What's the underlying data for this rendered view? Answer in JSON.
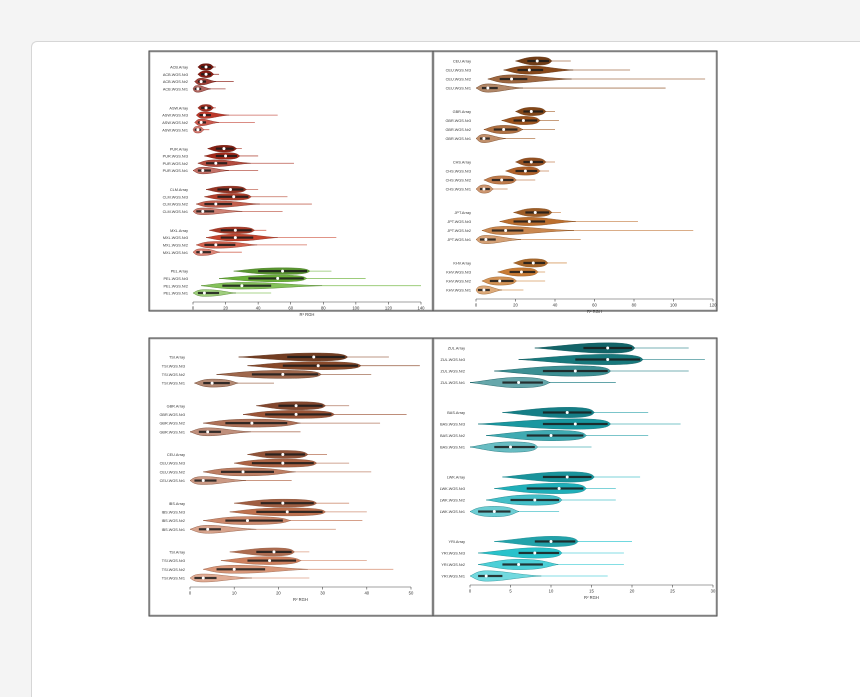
{
  "chart_data": [
    {
      "type": "violin",
      "xlabel": "R² RGH",
      "xlim": [
        0,
        140
      ],
      "xticks": [
        0,
        20,
        40,
        60,
        80,
        100,
        120,
        140
      ],
      "groups": [
        {
          "color": "#8b1c12",
          "rows": [
            {
              "label": "ACB.Array",
              "median": 8,
              "q1": 5,
              "q3": 11,
              "lo": 3,
              "hi": 14
            },
            {
              "label": "ACB.WGS.Nr3",
              "median": 8,
              "q1": 5,
              "q3": 11,
              "lo": 3,
              "hi": 16
            },
            {
              "label": "ACB.WGS.Nr2",
              "median": 5,
              "q1": 3,
              "q3": 8,
              "lo": 1,
              "hi": 25
            },
            {
              "label": "ACB.WGS.Nr1",
              "median": 3,
              "q1": 1,
              "q3": 5,
              "lo": 0,
              "hi": 20
            }
          ]
        },
        {
          "color": "#c0392b",
          "rows": [
            {
              "label": "ASW.Array",
              "median": 8,
              "q1": 5,
              "q3": 11,
              "lo": 3,
              "hi": 14
            },
            {
              "label": "ASW.WGS.Nr3",
              "median": 7,
              "q1": 4,
              "q3": 11,
              "lo": 2,
              "hi": 52
            },
            {
              "label": "ASW.WGS.Nr2",
              "median": 5,
              "q1": 3,
              "q3": 8,
              "lo": 1,
              "hi": 38
            },
            {
              "label": "ASW.WGS.Nr1",
              "median": 3,
              "q1": 1,
              "q3": 5,
              "lo": 0,
              "hi": 10
            }
          ]
        },
        {
          "color": "#a52a1a",
          "rows": [
            {
              "label": "PUR.Array",
              "median": 19,
              "q1": 14,
              "q3": 25,
              "lo": 9,
              "hi": 30
            },
            {
              "label": "PUR.WGS.Nr3",
              "median": 20,
              "q1": 14,
              "q3": 27,
              "lo": 7,
              "hi": 40
            },
            {
              "label": "PUR.WGS.Nr2",
              "median": 14,
              "q1": 8,
              "q3": 21,
              "lo": 3,
              "hi": 62
            },
            {
              "label": "PUR.WGS.Nr1",
              "median": 6,
              "q1": 3,
              "q3": 11,
              "lo": 0,
              "hi": 40
            }
          ]
        },
        {
          "color": "#b5402c",
          "rows": [
            {
              "label": "CLM.Array",
              "median": 23,
              "q1": 15,
              "q3": 31,
              "lo": 8,
              "hi": 40
            },
            {
              "label": "CLM.WGS.Nr3",
              "median": 25,
              "q1": 15,
              "q3": 34,
              "lo": 7,
              "hi": 58
            },
            {
              "label": "CLM.WGS.Nr2",
              "median": 14,
              "q1": 7,
              "q3": 24,
              "lo": 2,
              "hi": 73
            },
            {
              "label": "CLM.WGS.Nr1",
              "median": 6,
              "q1": 2,
              "q3": 13,
              "lo": 0,
              "hi": 55
            }
          ]
        },
        {
          "color": "#c9452f",
          "rows": [
            {
              "label": "MXL.Array",
              "median": 26,
              "q1": 17,
              "q3": 36,
              "lo": 10,
              "hi": 45
            },
            {
              "label": "MXL.WGS.Nr3",
              "median": 26,
              "q1": 17,
              "q3": 37,
              "lo": 8,
              "hi": 88
            },
            {
              "label": "MXL.WGS.Nr2",
              "median": 14,
              "q1": 7,
              "q3": 26,
              "lo": 2,
              "hi": 70
            },
            {
              "label": "MXL.WGS.Nr1",
              "median": 5,
              "q1": 2,
              "q3": 11,
              "lo": 0,
              "hi": 30
            }
          ]
        },
        {
          "color": "#6db53a",
          "rows": [
            {
              "label": "PEL.Array",
              "median": 55,
              "q1": 40,
              "q3": 70,
              "lo": 25,
              "hi": 85
            },
            {
              "label": "PEL.WGS.Nr3",
              "median": 52,
              "q1": 34,
              "q3": 68,
              "lo": 16,
              "hi": 106
            },
            {
              "label": "PEL.WGS.Nr2",
              "median": 30,
              "q1": 18,
              "q3": 48,
              "lo": 5,
              "hi": 140
            },
            {
              "label": "PEL.WGS.Nr1",
              "median": 7,
              "q1": 3,
              "q3": 16,
              "lo": 0,
              "hi": 48
            }
          ]
        }
      ]
    },
    {
      "type": "violin",
      "xlabel": "R² RGH",
      "xlim": [
        0,
        120
      ],
      "xticks": [
        0,
        20,
        40,
        60,
        80,
        100,
        120
      ],
      "groups": [
        {
          "color": "#8b4a1c",
          "rows": [
            {
              "label": "CEU.Array",
              "median": 31,
              "q1": 26,
              "q3": 37,
              "lo": 20,
              "hi": 48
            },
            {
              "label": "CEU.WGS.Nr3",
              "median": 27,
              "q1": 21,
              "q3": 34,
              "lo": 14,
              "hi": 78
            },
            {
              "label": "CEU.WGS.Nr2",
              "median": 18,
              "q1": 12,
              "q3": 26,
              "lo": 6,
              "hi": 116
            },
            {
              "label": "CEU.WGS.Nr1",
              "median": 6,
              "q1": 3,
              "q3": 11,
              "lo": 0,
              "hi": 96
            }
          ]
        },
        {
          "color": "#a0561f",
          "rows": [
            {
              "label": "GBR.Array",
              "median": 28,
              "q1": 24,
              "q3": 34,
              "lo": 20,
              "hi": 40
            },
            {
              "label": "GBR.WGS.Nr3",
              "median": 24,
              "q1": 19,
              "q3": 31,
              "lo": 13,
              "hi": 42
            },
            {
              "label": "GBR.WGS.Nr2",
              "median": 14,
              "q1": 9,
              "q3": 21,
              "lo": 4,
              "hi": 40
            },
            {
              "label": "GBR.WGS.Nr1",
              "median": 4,
              "q1": 2,
              "q3": 7,
              "lo": 0,
              "hi": 30
            }
          ]
        },
        {
          "color": "#b4632a",
          "rows": [
            {
              "label": "CHS.Array",
              "median": 28,
              "q1": 24,
              "q3": 34,
              "lo": 20,
              "hi": 40
            },
            {
              "label": "CHS.WGS.Nr3",
              "median": 25,
              "q1": 20,
              "q3": 31,
              "lo": 15,
              "hi": 37
            },
            {
              "label": "CHS.WGS.Nr2",
              "median": 13,
              "q1": 8,
              "q3": 19,
              "lo": 4,
              "hi": 30
            },
            {
              "label": "CHS.WGS.Nr1",
              "median": 4,
              "q1": 2,
              "q3": 7,
              "lo": 0,
              "hi": 16
            }
          ]
        },
        {
          "color": "#c0712f",
          "rows": [
            {
              "label": "JPT.Array",
              "median": 30,
              "q1": 25,
              "q3": 37,
              "lo": 19,
              "hi": 43
            },
            {
              "label": "JPT.WGS.Nr3",
              "median": 27,
              "q1": 19,
              "q3": 35,
              "lo": 12,
              "hi": 82
            },
            {
              "label": "JPT.WGS.Nr2",
              "median": 15,
              "q1": 8,
              "q3": 24,
              "lo": 3,
              "hi": 110
            },
            {
              "label": "JPT.WGS.Nr1",
              "median": 5,
              "q1": 2,
              "q3": 10,
              "lo": 0,
              "hi": 53
            }
          ]
        },
        {
          "color": "#cc7e35",
          "rows": [
            {
              "label": "KHV.Array",
              "median": 29,
              "q1": 24,
              "q3": 35,
              "lo": 19,
              "hi": 46
            },
            {
              "label": "KHV.WGS.Nr3",
              "median": 23,
              "q1": 17,
              "q3": 30,
              "lo": 11,
              "hi": 35
            },
            {
              "label": "KHV.WGS.Nr2",
              "median": 12,
              "q1": 7,
              "q3": 19,
              "lo": 3,
              "hi": 35
            },
            {
              "label": "KHV.WGS.Nr1",
              "median": 4,
              "q1": 1,
              "q3": 7,
              "lo": 0,
              "hi": 24
            }
          ]
        }
      ]
    },
    {
      "type": "violin",
      "xlabel": "R² RGH",
      "xlim": [
        0,
        50
      ],
      "xticks": [
        0,
        10,
        20,
        30,
        40,
        50
      ],
      "groups": [
        {
          "color": "#8b4a2a",
          "rows": [
            {
              "label": "TSI.Array",
              "median": 28,
              "q1": 22,
              "q3": 35,
              "lo": 11,
              "hi": 45
            },
            {
              "label": "TSI.WGS.Nr3",
              "median": 29,
              "q1": 21,
              "q3": 38,
              "lo": 13,
              "hi": 52
            },
            {
              "label": "TSI.WGS.Nr2",
              "median": 21,
              "q1": 14,
              "q3": 29,
              "lo": 6,
              "hi": 41
            },
            {
              "label": "TSI.WGS.Nr1",
              "median": 5,
              "q1": 3,
              "q3": 9,
              "lo": 1,
              "hi": 19
            }
          ]
        },
        {
          "color": "#9e5638",
          "rows": [
            {
              "label": "GBR.Array",
              "median": 24,
              "q1": 20,
              "q3": 30,
              "lo": 15,
              "hi": 36
            },
            {
              "label": "GBR.WGS.Nr3",
              "median": 24,
              "q1": 17,
              "q3": 32,
              "lo": 12,
              "hi": 49
            },
            {
              "label": "GBR.WGS.Nr2",
              "median": 14,
              "q1": 8,
              "q3": 22,
              "lo": 3,
              "hi": 43
            },
            {
              "label": "GBR.WGS.Nr1",
              "median": 4,
              "q1": 2,
              "q3": 7,
              "lo": 0,
              "hi": 25
            }
          ]
        },
        {
          "color": "#b06545",
          "rows": [
            {
              "label": "CEU.Array",
              "median": 21,
              "q1": 17,
              "q3": 26,
              "lo": 13,
              "hi": 31
            },
            {
              "label": "CEU.WGS.Nr3",
              "median": 21,
              "q1": 14,
              "q3": 28,
              "lo": 10,
              "hi": 36
            },
            {
              "label": "CEU.WGS.Nr2",
              "median": 12,
              "q1": 7,
              "q3": 19,
              "lo": 3,
              "hi": 41
            },
            {
              "label": "CEU.WGS.Nr1",
              "median": 3,
              "q1": 1,
              "q3": 6,
              "lo": 0,
              "hi": 23
            }
          ]
        },
        {
          "color": "#c27350",
          "rows": [
            {
              "label": "IBS.Array",
              "median": 21,
              "q1": 16,
              "q3": 28,
              "lo": 10,
              "hi": 36
            },
            {
              "label": "IBS.WGS.Nr3",
              "median": 22,
              "q1": 15,
              "q3": 30,
              "lo": 9,
              "hi": 40
            },
            {
              "label": "IBS.WGS.Nr2",
              "median": 13,
              "q1": 8,
              "q3": 21,
              "lo": 3,
              "hi": 39
            },
            {
              "label": "IBS.WGS.Nr1",
              "median": 4,
              "q1": 2,
              "q3": 7,
              "lo": 0,
              "hi": 33
            }
          ]
        },
        {
          "color": "#d28360",
          "rows": [
            {
              "label": "TSI.Array",
              "median": 19,
              "q1": 15,
              "q3": 23,
              "lo": 9,
              "hi": 27
            },
            {
              "label": "TSI.WGS.Nr3",
              "median": 18,
              "q1": 13,
              "q3": 24,
              "lo": 7,
              "hi": 40
            },
            {
              "label": "TSI.WGS.Nr2",
              "median": 10,
              "q1": 6,
              "q3": 17,
              "lo": 3,
              "hi": 46
            },
            {
              "label": "TSI.WGS.Nr1",
              "median": 3,
              "q1": 1,
              "q3": 6,
              "lo": 0,
              "hi": 27
            }
          ]
        }
      ]
    },
    {
      "type": "violin",
      "xlabel": "R² RGH",
      "xlim": [
        0,
        30
      ],
      "xticks": [
        0,
        5,
        10,
        15,
        20,
        25,
        30
      ],
      "groups": [
        {
          "color": "#177a7f",
          "rows": [
            {
              "label": "ZUL.Array",
              "median": 17,
              "q1": 14,
              "q3": 20,
              "lo": 8,
              "hi": 27
            },
            {
              "label": "ZUL.WGS.Nr3",
              "median": 17,
              "q1": 13,
              "q3": 21,
              "lo": 6,
              "hi": 29
            },
            {
              "label": "ZUL.WGS.Nr2",
              "median": 13,
              "q1": 9,
              "q3": 17,
              "lo": 3,
              "hi": 27
            },
            {
              "label": "ZUL.WGS.Nr1",
              "median": 6,
              "q1": 4,
              "q3": 9,
              "lo": 0,
              "hi": 18
            }
          ]
        },
        {
          "color": "#1a9aa3",
          "rows": [
            {
              "label": "BAS.Array",
              "median": 12,
              "q1": 9,
              "q3": 15,
              "lo": 4,
              "hi": 22
            },
            {
              "label": "BAS.WGS.Nr3",
              "median": 13,
              "q1": 9,
              "q3": 17,
              "lo": 1,
              "hi": 26
            },
            {
              "label": "BAS.WGS.Nr2",
              "median": 10,
              "q1": 7,
              "q3": 14,
              "lo": 2,
              "hi": 22
            },
            {
              "label": "BAS.WGS.Nr1",
              "median": 5,
              "q1": 3,
              "q3": 8,
              "lo": 0,
              "hi": 15
            }
          ]
        },
        {
          "color": "#20b3bd",
          "rows": [
            {
              "label": "LWK.Array",
              "median": 12,
              "q1": 9,
              "q3": 15,
              "lo": 4,
              "hi": 21
            },
            {
              "label": "LWK.WGS.Nr3",
              "median": 11,
              "q1": 7,
              "q3": 14,
              "lo": 3,
              "hi": 18
            },
            {
              "label": "LWK.WGS.Nr2",
              "median": 8,
              "q1": 5,
              "q3": 11,
              "lo": 2,
              "hi": 18
            },
            {
              "label": "LWK.WGS.Nr1",
              "median": 3,
              "q1": 1,
              "q3": 5,
              "lo": 0,
              "hi": 11
            }
          ]
        },
        {
          "color": "#2ac6cf",
          "rows": [
            {
              "label": "YRI.Array",
              "median": 10,
              "q1": 8,
              "q3": 13,
              "lo": 3,
              "hi": 20
            },
            {
              "label": "YRI.WGS.Nr3",
              "median": 8,
              "q1": 6,
              "q3": 11,
              "lo": 1,
              "hi": 19
            },
            {
              "label": "YRI.WGS.Nr2",
              "median": 6,
              "q1": 4,
              "q3": 9,
              "lo": 1,
              "hi": 19
            },
            {
              "label": "YRI.WGS.Nr1",
              "median": 2,
              "q1": 1,
              "q3": 4,
              "lo": 0,
              "hi": 17
            }
          ]
        }
      ]
    }
  ]
}
